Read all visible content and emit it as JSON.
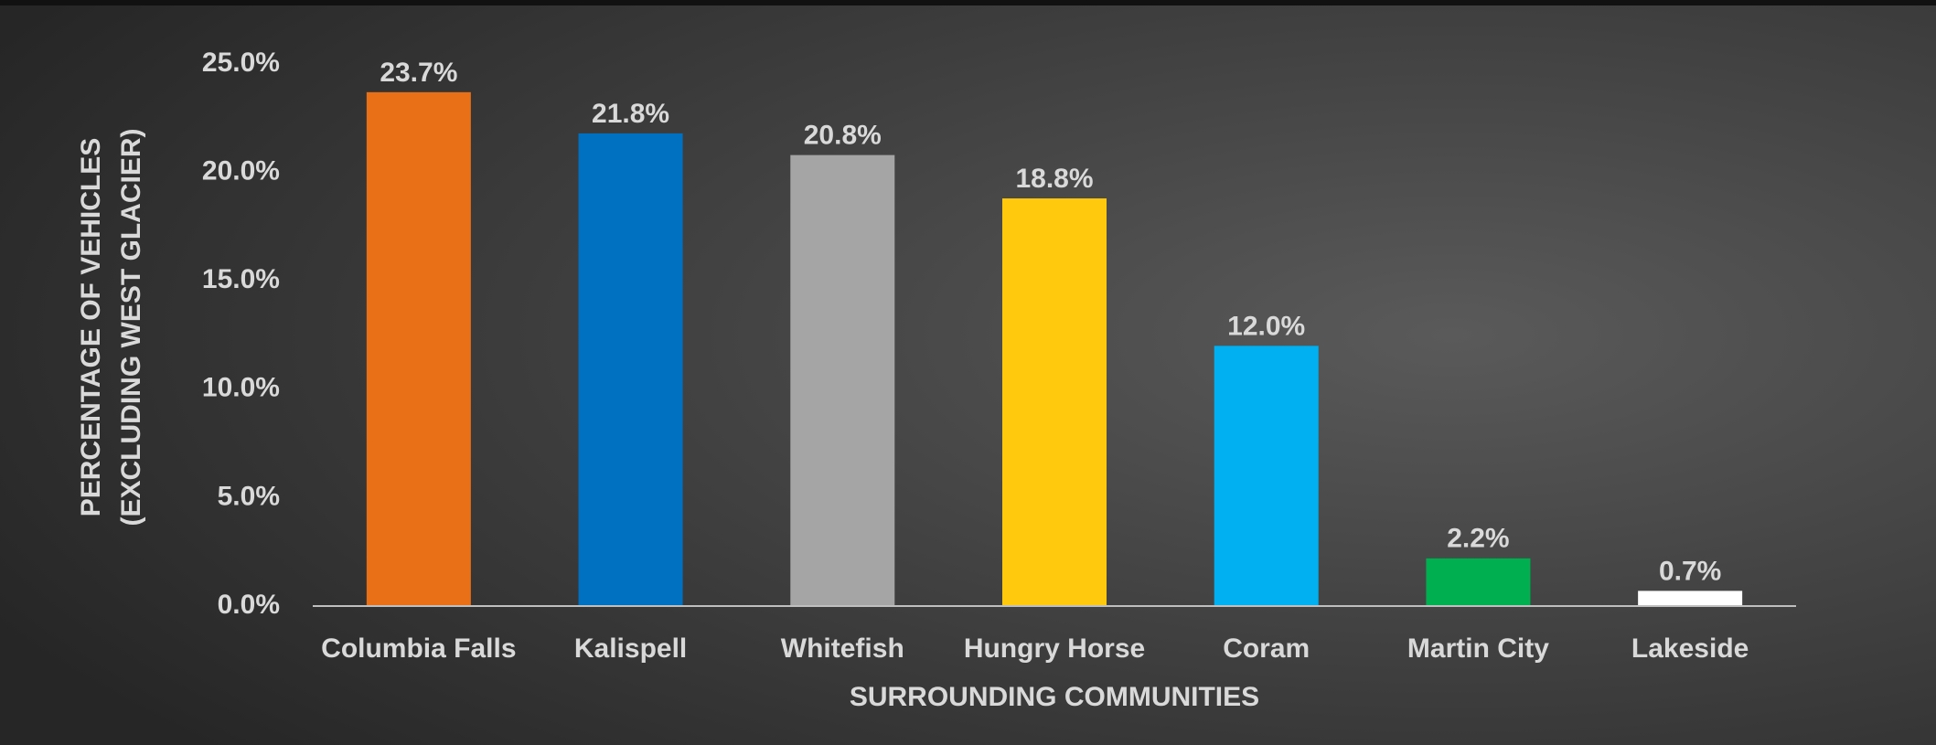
{
  "chart_data": {
    "type": "bar",
    "x_label": "SURROUNDING COMMUNITIES",
    "y_label": [
      "PERCENTAGE OF VEHICLES",
      "(EXCLUDING WEST GLACIER)"
    ],
    "categories": [
      "Columbia Falls",
      "Kalispell",
      "Whitefish",
      "Hungry Horse",
      "Coram",
      "Martin City",
      "Lakeside"
    ],
    "values": [
      23.7,
      21.8,
      20.8,
      18.8,
      12.0,
      2.2,
      0.7
    ],
    "value_labels": [
      "23.7%",
      "21.8%",
      "20.8%",
      "18.8%",
      "12.0%",
      "2.2%",
      "0.7%"
    ],
    "colors": [
      "#EA7017",
      "#0070C0",
      "#A5A5A5",
      "#FFC90E",
      "#00B0F0",
      "#00B050",
      "#FFFFFF"
    ],
    "ylim": [
      0,
      25
    ],
    "yticks": [
      {
        "value": 0,
        "label": "0.0%"
      },
      {
        "value": 5,
        "label": "5.0%"
      },
      {
        "value": 10,
        "label": "10.0%"
      },
      {
        "value": 15,
        "label": "15.0%"
      },
      {
        "value": 20,
        "label": "20.0%"
      },
      {
        "value": 25,
        "label": "25.0%"
      }
    ],
    "grid": false
  }
}
